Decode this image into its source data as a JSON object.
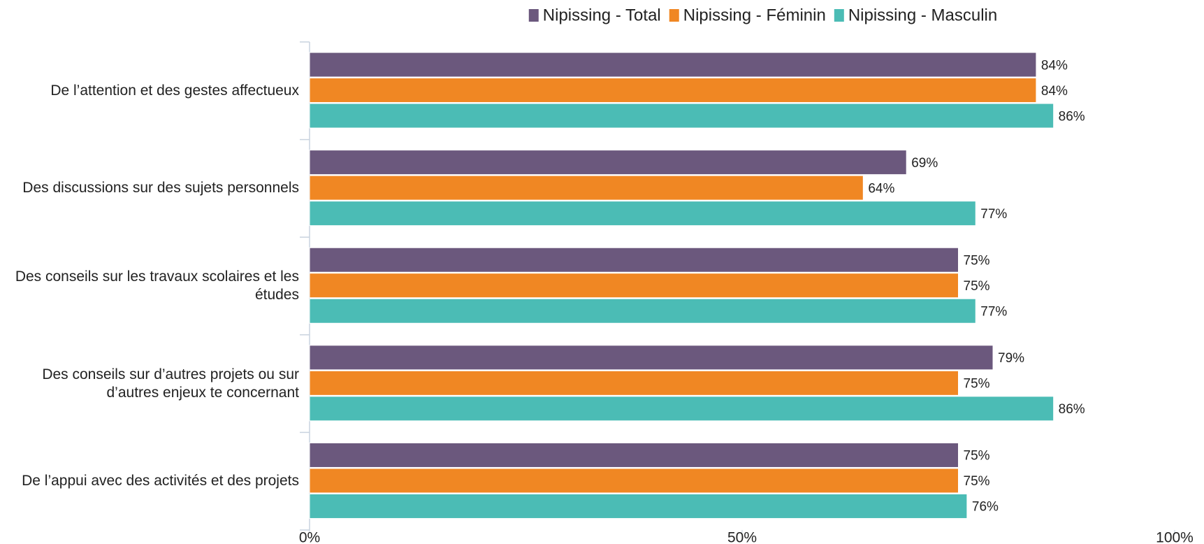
{
  "chart_data": {
    "type": "barh",
    "categories": [
      "De l’attention et des gestes affectueux",
      "Des discussions sur des sujets personnels",
      "Des conseils sur les travaux scolaires et les études",
      "Des conseils sur d’autres projets ou sur d’autres enjeux te concernant",
      "De l’appui avec des activités et des projets"
    ],
    "series": [
      {
        "name": "Nipissing - Total",
        "color": "#6b587d",
        "values": [
          84,
          69,
          75,
          79,
          75
        ],
        "value_labels": [
          "84%",
          "69%",
          "75%",
          "79%",
          "75%"
        ]
      },
      {
        "name": "Nipissing - Féminin",
        "color": "#f08723",
        "values": [
          84,
          64,
          75,
          75,
          75
        ],
        "value_labels": [
          "84%",
          "64%",
          "75%",
          "75%",
          "75%"
        ]
      },
      {
        "name": "Nipissing - Masculin",
        "color": "#4bbcb5",
        "values": [
          86,
          77,
          77,
          86,
          76
        ],
        "value_labels": [
          "86%",
          "77%",
          "77%",
          "86%",
          "76%"
        ]
      }
    ],
    "xlim": [
      0,
      100
    ],
    "xticks": [
      {
        "value": 0,
        "label": "0%"
      },
      {
        "value": 50,
        "label": "50%"
      },
      {
        "value": 100,
        "label": "100%"
      }
    ],
    "legend": "top"
  }
}
